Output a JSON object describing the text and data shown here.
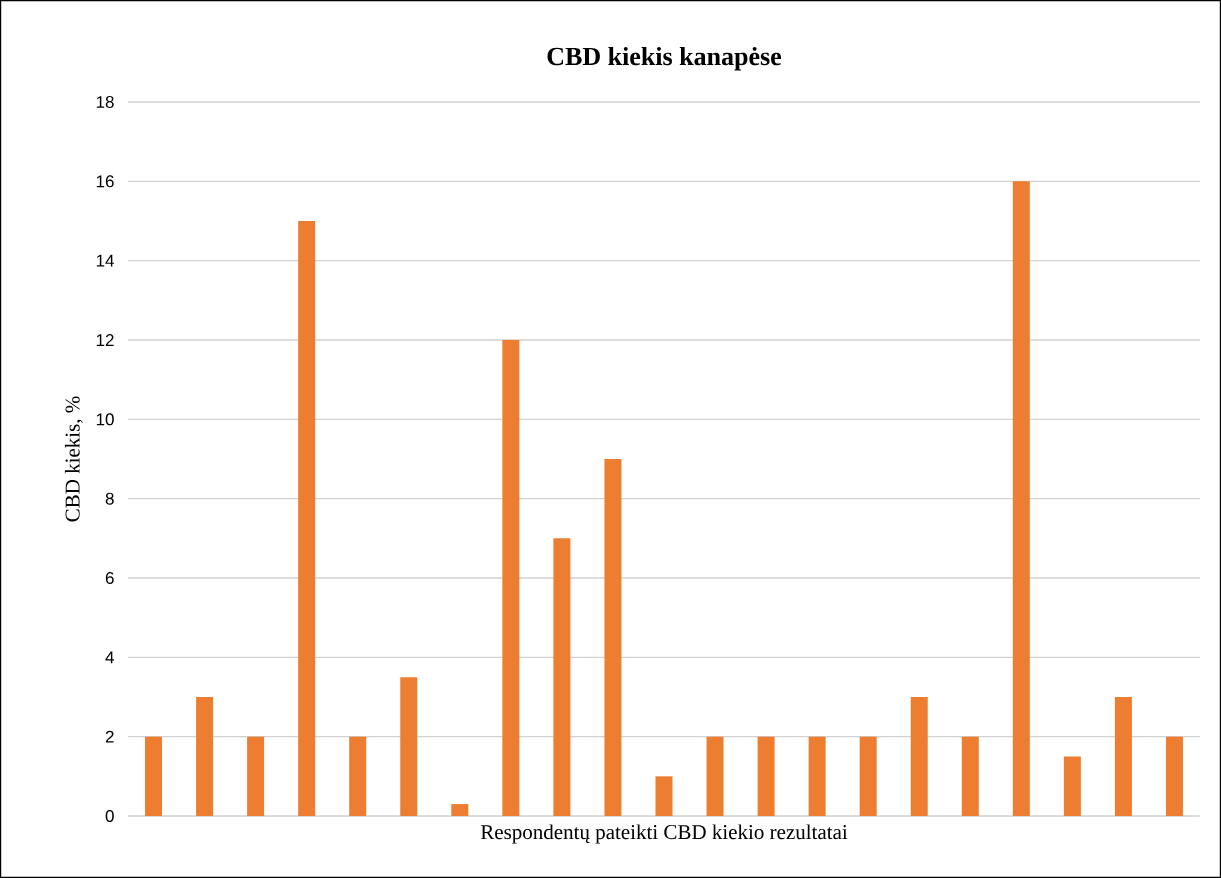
{
  "chart_data": {
    "type": "bar",
    "title": "CBD kiekis kanapėse",
    "xlabel": "Respondentų pateikti CBD kiekio rezultatai",
    "ylabel": "CBD kiekis, %",
    "categories": [
      null,
      null,
      null,
      null,
      null,
      null,
      null,
      null,
      null,
      null,
      null,
      null,
      null,
      null,
      null,
      null,
      null,
      null,
      null,
      null,
      null
    ],
    "values": [
      2,
      3,
      2,
      15,
      2,
      3.5,
      0.3,
      12,
      7,
      9,
      1,
      2,
      2,
      2,
      2,
      3,
      2,
      16,
      1.5,
      3,
      2
    ],
    "color": "#ed7d31",
    "ylim": [
      0,
      18
    ],
    "yticks": [
      0,
      2,
      4,
      6,
      8,
      10,
      12,
      14,
      16,
      18
    ],
    "grid": "y"
  }
}
